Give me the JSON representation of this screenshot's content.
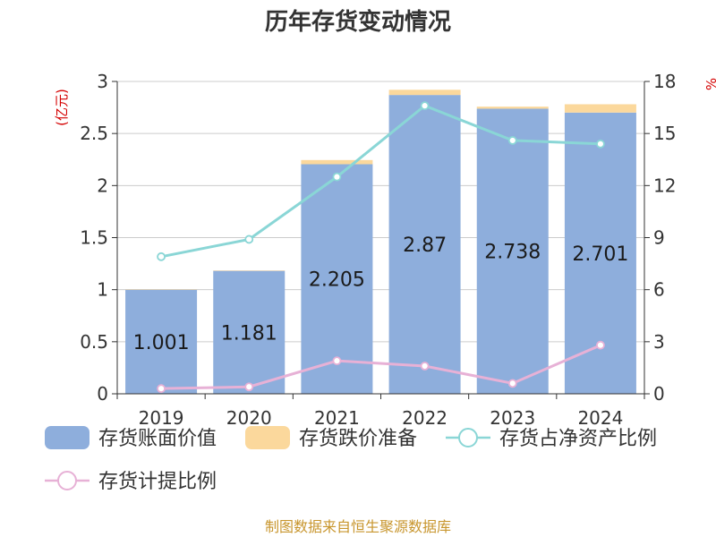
{
  "chart_data": {
    "type": "bar",
    "title": "历年存货变动情况",
    "categories": [
      "2019",
      "2020",
      "2021",
      "2022",
      "2023",
      "2024"
    ],
    "ylabel": "(亿元)",
    "y2label": "%",
    "ylim": [
      0,
      3
    ],
    "y2lim": [
      0,
      18
    ],
    "yticks": [
      "0",
      "0.5",
      "1",
      "1.5",
      "2",
      "2.5",
      "3"
    ],
    "y2ticks": [
      "0",
      "3",
      "6",
      "9",
      "12",
      "15",
      "18"
    ],
    "stacked": true,
    "grid": true,
    "legend_position": "bottom",
    "series": [
      {
        "name": "存货账面价值",
        "kind": "bar",
        "axis": "left",
        "color": "#8eaedc",
        "values": [
          1.001,
          1.181,
          2.205,
          2.87,
          2.738,
          2.701
        ],
        "labels": [
          "1.001",
          "1.181",
          "2.205",
          "2.87",
          "2.738",
          "2.701"
        ]
      },
      {
        "name": "存货跌价准备",
        "kind": "bar",
        "axis": "left",
        "color": "#fbd89c",
        "values": [
          0.003,
          0.004,
          0.04,
          0.05,
          0.02,
          0.08
        ]
      },
      {
        "name": "存货占净资产比例",
        "kind": "line",
        "axis": "right",
        "color": "#8ad6d6",
        "values": [
          7.9,
          8.9,
          12.5,
          16.6,
          14.6,
          14.4
        ]
      },
      {
        "name": "存货计提比例",
        "kind": "line",
        "axis": "right",
        "color": "#e7b1d6",
        "values": [
          0.3,
          0.4,
          1.9,
          1.6,
          0.6,
          2.8
        ]
      }
    ]
  },
  "footer": {
    "source": "制图数据来自恒生聚源数据库"
  }
}
